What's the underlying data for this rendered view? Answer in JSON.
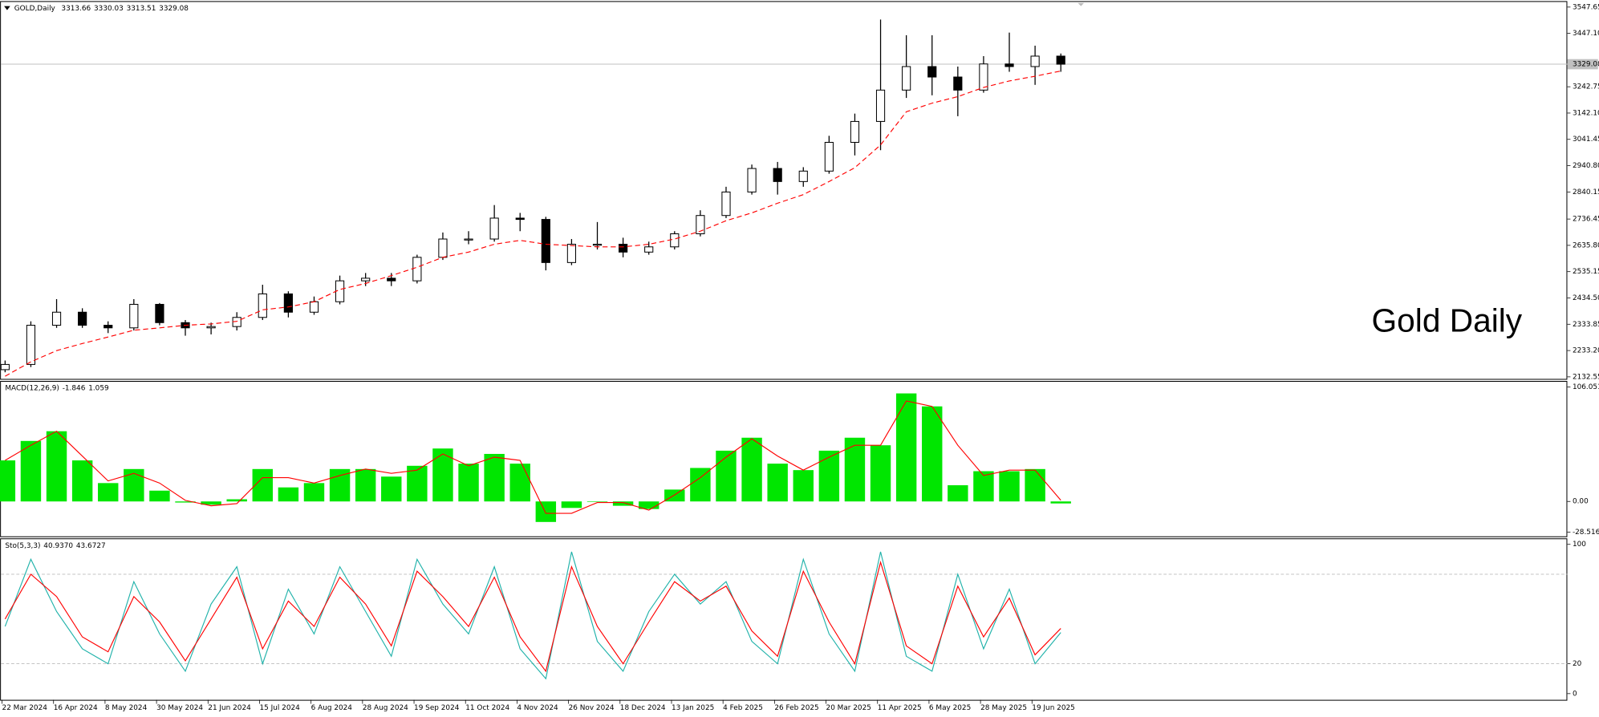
{
  "chart_data": [
    {
      "type": "candlestick",
      "title": "GOLD,Daily",
      "header_values": [
        3313.66,
        3330.03,
        3313.51,
        3329.08
      ],
      "annotation": "Gold Daily",
      "categories": [
        "22 Mar 2024",
        null,
        "16 Apr 2024",
        null,
        "8 May 2024",
        null,
        "30 May 2024",
        null,
        "21 Jun 2024",
        null,
        "15 Jul 2024",
        null,
        "6 Aug 2024",
        null,
        "28 Aug 2024",
        null,
        "19 Sep 2024",
        null,
        "11 Oct 2024",
        null,
        "4 Nov 2024",
        null,
        "26 Nov 2024",
        null,
        "18 Dec 2024",
        null,
        "13 Jan 2025",
        null,
        "4 Feb 2025",
        null,
        "26 Feb 2025",
        null,
        "20 Mar 2025",
        null,
        "11 Apr 2025",
        null,
        "6 May 2025",
        null,
        "28 May 2025",
        null,
        "19 Jun 2025",
        null
      ],
      "open": [
        2160,
        2180,
        2330,
        2380,
        2330,
        2320,
        2410,
        2340,
        2320,
        2325,
        2360,
        2450,
        2380,
        2420,
        2500,
        2510,
        2500,
        2590,
        2660,
        2660,
        2740,
        2735,
        2570,
        2640,
        2640,
        2610,
        2630,
        2680,
        2750,
        2840,
        2930,
        2880,
        2920,
        3030,
        3110,
        3230,
        3320,
        3280,
        3230,
        3330,
        3320,
        3360
      ],
      "high": [
        2195,
        2345,
        2430,
        2395,
        2345,
        2430,
        2415,
        2350,
        2340,
        2380,
        2485,
        2460,
        2440,
        2520,
        2530,
        2530,
        2600,
        2685,
        2690,
        2790,
        2760,
        2745,
        2660,
        2725,
        2665,
        2650,
        2690,
        2770,
        2860,
        2945,
        2955,
        2935,
        3055,
        3140,
        3500,
        3440,
        3440,
        3320,
        3360,
        3450,
        3400,
        3370
      ],
      "low": [
        2150,
        2170,
        2320,
        2320,
        2300,
        2310,
        2330,
        2290,
        2295,
        2310,
        2350,
        2360,
        2370,
        2410,
        2480,
        2480,
        2490,
        2580,
        2640,
        2650,
        2690,
        2540,
        2560,
        2620,
        2590,
        2600,
        2620,
        2670,
        2740,
        2830,
        2830,
        2860,
        2910,
        2980,
        3000,
        3200,
        3210,
        3130,
        3220,
        3300,
        3250,
        3300
      ],
      "close": [
        2180,
        2330,
        2380,
        2330,
        2320,
        2410,
        2340,
        2320,
        2325,
        2360,
        2450,
        2380,
        2420,
        2500,
        2510,
        2500,
        2590,
        2660,
        2660,
        2740,
        2735,
        2570,
        2640,
        2640,
        2610,
        2630,
        2680,
        2750,
        2840,
        2930,
        2880,
        2920,
        3030,
        3110,
        3230,
        3320,
        3280,
        3230,
        3330,
        3320,
        3360,
        3329.08
      ],
      "moving_average": {
        "color": "#ff0000",
        "values": [
          2135,
          2190,
          2233,
          2260,
          2285,
          2311,
          2320,
          2330,
          2335,
          2345,
          2389,
          2400,
          2420,
          2467,
          2490,
          2520,
          2552,
          2590,
          2610,
          2640,
          2655,
          2640,
          2635,
          2630,
          2630,
          2640,
          2660,
          2690,
          2730,
          2760,
          2797,
          2830,
          2880,
          2933,
          3020,
          3147,
          3180,
          3205,
          3240,
          3265,
          3283,
          3303
        ]
      },
      "current_price": 3329.08,
      "ylim": [
        2125,
        3567
      ],
      "yticks": [
        3547.65,
        {
          "value": 3447.1,
          "label": "3447.10"
        },
        3242.75,
        {
          "value": 3142.1,
          "label": "3142.10"
        },
        3041.45,
        {
          "value": 2940.8,
          "label": "2940.80"
        },
        2840.15,
        2736.45,
        {
          "value": 2635.8,
          "label": "2635.80"
        },
        2535.15,
        {
          "value": 2434.5,
          "label": "2434.50"
        },
        2333.85,
        {
          "value": 2233.2,
          "label": "2233.20"
        },
        2132.55
      ]
    },
    {
      "type": "macd",
      "title": "MACD(12,26,9)",
      "header_values": [
        -1.846,
        1.059
      ],
      "series": [
        {
          "kind": "histogram",
          "color": "#00e600",
          "values": [
            38,
            56,
            65,
            38,
            17,
            30,
            10,
            -1,
            -3,
            2,
            30,
            13,
            17,
            30,
            30,
            23,
            33,
            49,
            35,
            44,
            35,
            -19,
            -6,
            0,
            -4,
            -7,
            11,
            31,
            47,
            59,
            35,
            29,
            47,
            59,
            52,
            100,
            88,
            15,
            28,
            28,
            30,
            -1.846
          ]
        },
        {
          "kind": "line",
          "color": "#ff0000",
          "values": [
            38,
            52,
            65,
            42,
            19,
            26,
            17,
            1,
            -4,
            -2,
            22,
            22,
            17,
            24,
            30,
            26,
            29,
            44,
            33,
            41,
            38,
            -11,
            -11,
            -1,
            -1,
            -8,
            6,
            22,
            41,
            58,
            42,
            29,
            41,
            52,
            52,
            93,
            88,
            52,
            24,
            29,
            29,
            1.059
          ]
        }
      ],
      "ylim": [
        -32.2,
        110.7
      ],
      "yticks": [
        106.051,
        {
          "value": 0,
          "label": "0.00"
        },
        -28.516
      ]
    },
    {
      "type": "stochastic",
      "title": "Sto(5,3,3)",
      "header_values": [
        {
          "value": 40.937,
          "label": "40.9370"
        },
        43.6727
      ],
      "series": [
        {
          "kind": "line",
          "color": "#20b2aa",
          "values": [
            45,
            90,
            55,
            30,
            20,
            75,
            40,
            15,
            60,
            85,
            20,
            70,
            40,
            85,
            55,
            25,
            90,
            60,
            40,
            85,
            30,
            10,
            95,
            35,
            15,
            55,
            80,
            60,
            75,
            35,
            20,
            90,
            40,
            15,
            95,
            25,
            15,
            80,
            30,
            70,
            20,
            40.937
          ]
        },
        {
          "kind": "line",
          "color": "#ff0000",
          "values": [
            50,
            80,
            65,
            38,
            28,
            65,
            48,
            22,
            50,
            78,
            30,
            62,
            45,
            78,
            60,
            32,
            82,
            65,
            45,
            78,
            38,
            15,
            85,
            45,
            20,
            48,
            75,
            62,
            72,
            42,
            25,
            82,
            48,
            20,
            88,
            32,
            20,
            72,
            38,
            64,
            26,
            43.6727
          ]
        }
      ],
      "levels": [
        80,
        20
      ],
      "ylim": [
        -4.1,
        103.4
      ],
      "yticks": [
        100,
        20,
        0
      ]
    }
  ]
}
